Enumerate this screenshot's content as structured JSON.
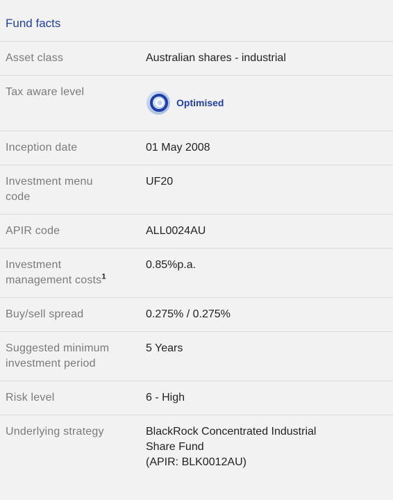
{
  "header": {
    "title": "Fund facts"
  },
  "rows": [
    {
      "label": [
        "Asset class"
      ],
      "value": [
        "Australian shares - industrial"
      ]
    },
    {
      "label": [
        "Tax aware level"
      ],
      "badge": "Optimised"
    },
    {
      "label": [
        "Inception date"
      ],
      "value": [
        "01 May 2008"
      ]
    },
    {
      "label": [
        "Investment menu",
        "code"
      ],
      "value": [
        "UF20"
      ]
    },
    {
      "label": [
        "APIR code"
      ],
      "value": [
        "ALL0024AU"
      ]
    },
    {
      "label": [
        "Investment",
        "management costs"
      ],
      "label_note": "1",
      "value": [
        "0.85%p.a."
      ]
    },
    {
      "label": [
        "Buy/sell spread"
      ],
      "value": [
        "0.275% / 0.275%"
      ]
    },
    {
      "label": [
        "Suggested minimum",
        "investment period"
      ],
      "value": [
        "5 Years"
      ]
    },
    {
      "label": [
        "Risk level"
      ],
      "value": [
        "6 - High"
      ]
    },
    {
      "label": [
        "Underlying strategy"
      ],
      "value": [
        "BlackRock Concentrated Industrial",
        "Share Fund",
        "(APIR: BLK0012AU)"
      ]
    }
  ]
}
